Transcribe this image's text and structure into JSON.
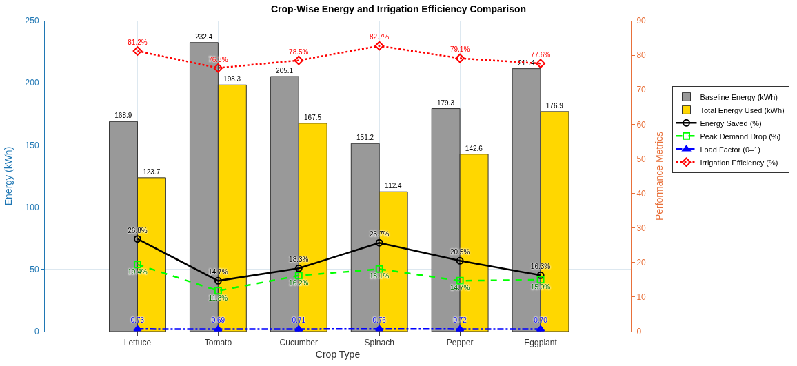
{
  "chart_data": {
    "type": "bar",
    "title": "Crop-Wise Energy and Irrigation Efficiency Comparison",
    "xlabel": "Crop Type",
    "ylabel": "Energy (kWh)",
    "y2label": "Performance Metrics",
    "categories": [
      "Lettuce",
      "Tomato",
      "Cucumber",
      "Spinach",
      "Pepper",
      "Eggplant"
    ],
    "series": [
      {
        "name": "Baseline Energy (kWh)",
        "color": "#999999",
        "values": [
          168.9,
          232.4,
          205.1,
          151.2,
          179.3,
          211.4
        ],
        "value_labels": [
          "168.9",
          "232.4",
          "205.1",
          "151.2",
          "179.3",
          "211.4"
        ]
      },
      {
        "name": "Total Energy Used (kWh)",
        "color": "#ffd700",
        "values": [
          123.7,
          198.3,
          167.5,
          112.4,
          142.6,
          176.9
        ],
        "value_labels": [
          "123.7",
          "198.3",
          "167.5",
          "112.4",
          "142.6",
          "176.9"
        ]
      },
      {
        "name": "Energy Saved (%)",
        "type": "line",
        "axis": "y2",
        "color": "#000000",
        "marker": "circle",
        "line_style": "solid",
        "values": [
          26.8,
          14.7,
          18.3,
          25.7,
          20.5,
          16.3
        ],
        "value_labels": [
          "26.8%",
          "14.7%",
          "18.3%",
          "25.7%",
          "20.5%",
          "16.3%"
        ]
      },
      {
        "name": "Peak Demand Drop (%)",
        "type": "line",
        "axis": "y2",
        "color": "#00ff00",
        "marker": "square",
        "line_style": "dashed",
        "values": [
          19.4,
          11.8,
          16.2,
          18.1,
          14.7,
          15.0
        ],
        "value_labels": [
          "19.4%",
          "11.8%",
          "16.2%",
          "18.1%",
          "14.7%",
          "15.0%"
        ]
      },
      {
        "name": "Load Factor (0–1)",
        "type": "line",
        "axis": "y2",
        "color": "#0000ff",
        "marker": "triangle",
        "line_style": "dashdot",
        "values": [
          0.73,
          0.69,
          0.71,
          0.76,
          0.72,
          0.7
        ],
        "value_labels": [
          "0.73",
          "0.69",
          "0.71",
          "0.76",
          "0.72",
          "0.70"
        ]
      },
      {
        "name": "Irrigation Efficiency (%)",
        "type": "line",
        "axis": "y2",
        "color": "#ff0000",
        "marker": "diamond",
        "line_style": "dotted",
        "values": [
          81.2,
          76.3,
          78.5,
          82.7,
          79.1,
          77.6
        ],
        "value_labels": [
          "81.2%",
          "76.3%",
          "78.5%",
          "82.7%",
          "79.1%",
          "77.6%"
        ]
      }
    ],
    "ylim": [
      0,
      250
    ],
    "yticks": [
      0,
      50,
      100,
      150,
      200,
      250
    ],
    "y2lim": [
      0,
      90
    ],
    "y2ticks": [
      0,
      10,
      20,
      30,
      40,
      50,
      60,
      70,
      80,
      90
    ],
    "grid": true,
    "legend": "right"
  }
}
